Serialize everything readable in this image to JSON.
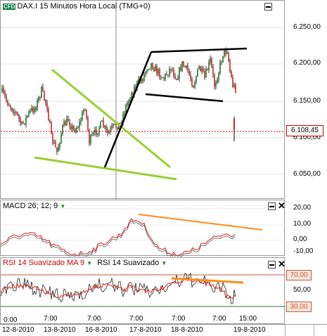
{
  "chart_title": "DAX.I 15 Minutos Hora Local (TMG+0)",
  "logo_text": "CFD",
  "price_axis": {
    "ticks": [
      "6.250,00",
      "6.200,00",
      "6.150,00",
      "6.100,00",
      "6.050,00"
    ],
    "current_price": "6.108,45"
  },
  "macd": {
    "label": "MACD 26; 12; 9",
    "ticks": [
      "20,00",
      "10,00",
      "0,00",
      "-10,00"
    ]
  },
  "rsi": {
    "label1": "RSI 14 Suavizado MA 9",
    "label2": "RSI 14 Suavizado",
    "ticks": [
      "70,00",
      "50,00",
      "30,00"
    ],
    "levels": [
      70,
      30
    ]
  },
  "time_axis": {
    "hours": [
      "7:00",
      "7:00",
      "7:00",
      "7:00",
      "7:00",
      "15:00"
    ],
    "dates": [
      "12-8-2010",
      "13-8-2010",
      "16-8-2010",
      "17-8-2010",
      "18-8-2010",
      "19-8-2010"
    ]
  },
  "colors": {
    "trendline_green": "#9acd32",
    "channel": "#000000",
    "divergence": "#ff8c1a",
    "candle_up": "#1a7a1a",
    "candle_down": "#d42020",
    "macd_line": "#d42020",
    "signal_line": "#777777"
  }
}
